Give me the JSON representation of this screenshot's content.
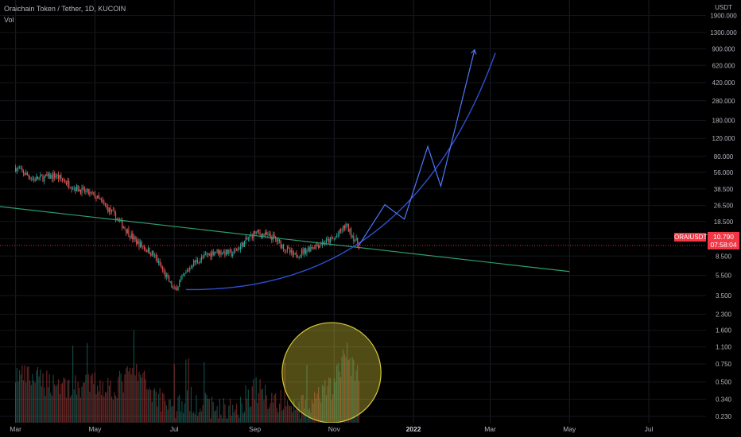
{
  "header": {
    "symbol_line": "Oraichain Token / Tether, 1D, KUCOIN",
    "volume_label": "Vol"
  },
  "axis": {
    "currency": "USDT",
    "price_ticks": [
      "1900.000",
      "1300.000",
      "900.000",
      "620.000",
      "420.000",
      "280.000",
      "180.000",
      "120.000",
      "80.000",
      "56.000",
      "38.500",
      "26.500",
      "18.500",
      "12.500",
      "8.500",
      "5.500",
      "3.500",
      "2.300",
      "1.600",
      "1.100",
      "0.750",
      "0.500",
      "0.340",
      "0.230"
    ],
    "time_ticks": [
      "Mar",
      "May",
      "Jul",
      "Sep",
      "Nov",
      "2022",
      "Mar",
      "May",
      "Jul"
    ]
  },
  "last_price": {
    "symbol": "ORAIUSDT",
    "value": "10.790",
    "countdown": "07:58:04"
  },
  "colors": {
    "background": "#000000",
    "up": "#26a69a",
    "down": "#ef5350",
    "trendline": "#2e9e6e",
    "curve": "#2f4fd0",
    "projection": "#4f78ff",
    "highlight": "#d4c93a",
    "price_tag": "#f23645"
  },
  "chart_data": {
    "type": "candlestick",
    "scale": "log",
    "ylim": [
      0.2,
      2700
    ],
    "xlim": [
      "2021-02-17",
      "2022-08-14"
    ],
    "price_series": {
      "dates": [
        "2021-03-01",
        "2021-03-15",
        "2021-04-01",
        "2021-04-15",
        "2021-05-01",
        "2021-05-15",
        "2021-06-01",
        "2021-06-15",
        "2021-07-01",
        "2021-07-15",
        "2021-08-01",
        "2021-08-15",
        "2021-09-01",
        "2021-09-15",
        "2021-10-01",
        "2021-10-15",
        "2021-11-01",
        "2021-11-10",
        "2021-11-20"
      ],
      "close": [
        62,
        48,
        52,
        40,
        33,
        22,
        12,
        8.8,
        3.9,
        7.2,
        9.5,
        9,
        14.5,
        13,
        8.5,
        10.5,
        12.5,
        17,
        10.79
      ]
    },
    "volume_series": {
      "dates": [
        "2021-03-01",
        "2021-03-15",
        "2021-04-01",
        "2021-04-15",
        "2021-05-01",
        "2021-05-15",
        "2021-06-01",
        "2021-06-15",
        "2021-07-01",
        "2021-07-15",
        "2021-08-01",
        "2021-08-15",
        "2021-09-01",
        "2021-09-15",
        "2021-10-01",
        "2021-10-15",
        "2021-11-01",
        "2021-11-10",
        "2021-11-20"
      ],
      "values": [
        0.6,
        0.55,
        0.5,
        0.45,
        0.5,
        0.45,
        0.65,
        0.4,
        0.3,
        0.35,
        0.28,
        0.27,
        0.45,
        0.35,
        0.28,
        0.3,
        0.5,
        1.0,
        0.6
      ]
    },
    "drawings": {
      "trendline": [
        [
          "2020-12-25",
          31
        ],
        [
          "2022-05-01",
          6.0
        ]
      ],
      "curve_anchor": [
        "2021-07-10",
        4.0
      ],
      "curve_end": [
        "2022-03-05",
        820
      ],
      "zigzag": [
        [
          "2021-11-20",
          10.8
        ],
        [
          "2021-12-10",
          27
        ],
        [
          "2021-12-25",
          19.5
        ],
        [
          "2022-01-12",
          100
        ],
        [
          "2022-01-22",
          41
        ],
        [
          "2022-02-17",
          880
        ]
      ],
      "highlight_ellipse": {
        "center": [
          "2021-10-30",
          0.45
        ],
        "x_halfwidth_days": 38,
        "y_range": [
          0.2,
          1.9
        ]
      }
    }
  }
}
